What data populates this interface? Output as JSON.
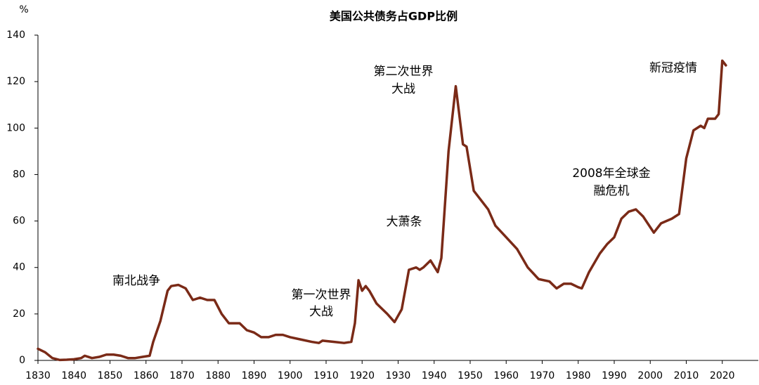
{
  "chart_data": {
    "type": "line",
    "title": "美国公共债务占GDP比例",
    "y_unit": "%",
    "x": [
      1830,
      1832,
      1834,
      1836,
      1838,
      1840,
      1842,
      1843,
      1845,
      1847,
      1849,
      1851,
      1853,
      1855,
      1857,
      1859,
      1861,
      1862,
      1864,
      1866,
      1867,
      1869,
      1871,
      1873,
      1875,
      1877,
      1879,
      1881,
      1883,
      1886,
      1888,
      1890,
      1892,
      1894,
      1896,
      1898,
      1900,
      1903,
      1906,
      1908,
      1909,
      1912,
      1915,
      1917,
      1918,
      1919,
      1920,
      1921,
      1922,
      1924,
      1927,
      1929,
      1931,
      1933,
      1935,
      1936,
      1937,
      1939,
      1941,
      1942,
      1944,
      1946,
      1948,
      1949,
      1951,
      1953,
      1955,
      1957,
      1960,
      1963,
      1966,
      1969,
      1972,
      1974,
      1976,
      1978,
      1980,
      1981,
      1983,
      1986,
      1988,
      1990,
      1992,
      1994,
      1996,
      1998,
      2001,
      2003,
      2006,
      2008,
      2010,
      2012,
      2014,
      2015,
      2016,
      2018,
      2019,
      2020,
      2021
    ],
    "values": [
      5,
      3.5,
      1,
      0.2,
      0.3,
      0.5,
      1,
      2,
      1,
      1.5,
      2.5,
      2.5,
      2,
      1,
      1,
      1.5,
      2,
      8,
      17,
      30,
      32,
      32.5,
      31,
      26,
      27,
      26,
      26,
      20,
      16,
      16,
      13,
      12,
      10,
      10,
      11,
      11,
      10,
      9,
      8,
      7.5,
      8.5,
      8,
      7.5,
      8,
      16,
      34.5,
      30,
      32,
      30,
      24.5,
      20,
      16.5,
      22,
      39,
      40,
      39,
      40,
      43,
      38,
      44,
      90,
      118,
      93,
      92,
      73,
      69,
      65,
      58,
      53,
      48,
      40,
      35,
      34,
      31,
      33,
      33,
      31.5,
      31,
      38,
      46,
      50,
      53,
      61,
      64,
      65,
      62,
      55,
      59,
      61,
      63,
      87,
      99,
      101,
      100,
      104,
      104,
      106,
      129,
      127
    ],
    "color": "#7a2a17",
    "xlim": [
      1830,
      2030
    ],
    "xticks": [
      1830,
      1840,
      1850,
      1860,
      1870,
      1880,
      1890,
      1900,
      1910,
      1920,
      1930,
      1940,
      1950,
      1960,
      1970,
      1980,
      1990,
      2000,
      2010,
      2020
    ],
    "ylim": [
      0,
      140
    ],
    "yticks": [
      0,
      20,
      40,
      60,
      80,
      100,
      120,
      140
    ],
    "annotations": [
      {
        "lines": [
          "南北战争"
        ]
      },
      {
        "lines": [
          "第一次世界",
          "大战"
        ]
      },
      {
        "lines": [
          "大萧条"
        ]
      },
      {
        "lines": [
          "第二次世界",
          "大战"
        ]
      },
      {
        "lines": [
          "2008年全球金",
          "融危机"
        ]
      },
      {
        "lines": [
          "新冠疫情"
        ]
      }
    ]
  }
}
